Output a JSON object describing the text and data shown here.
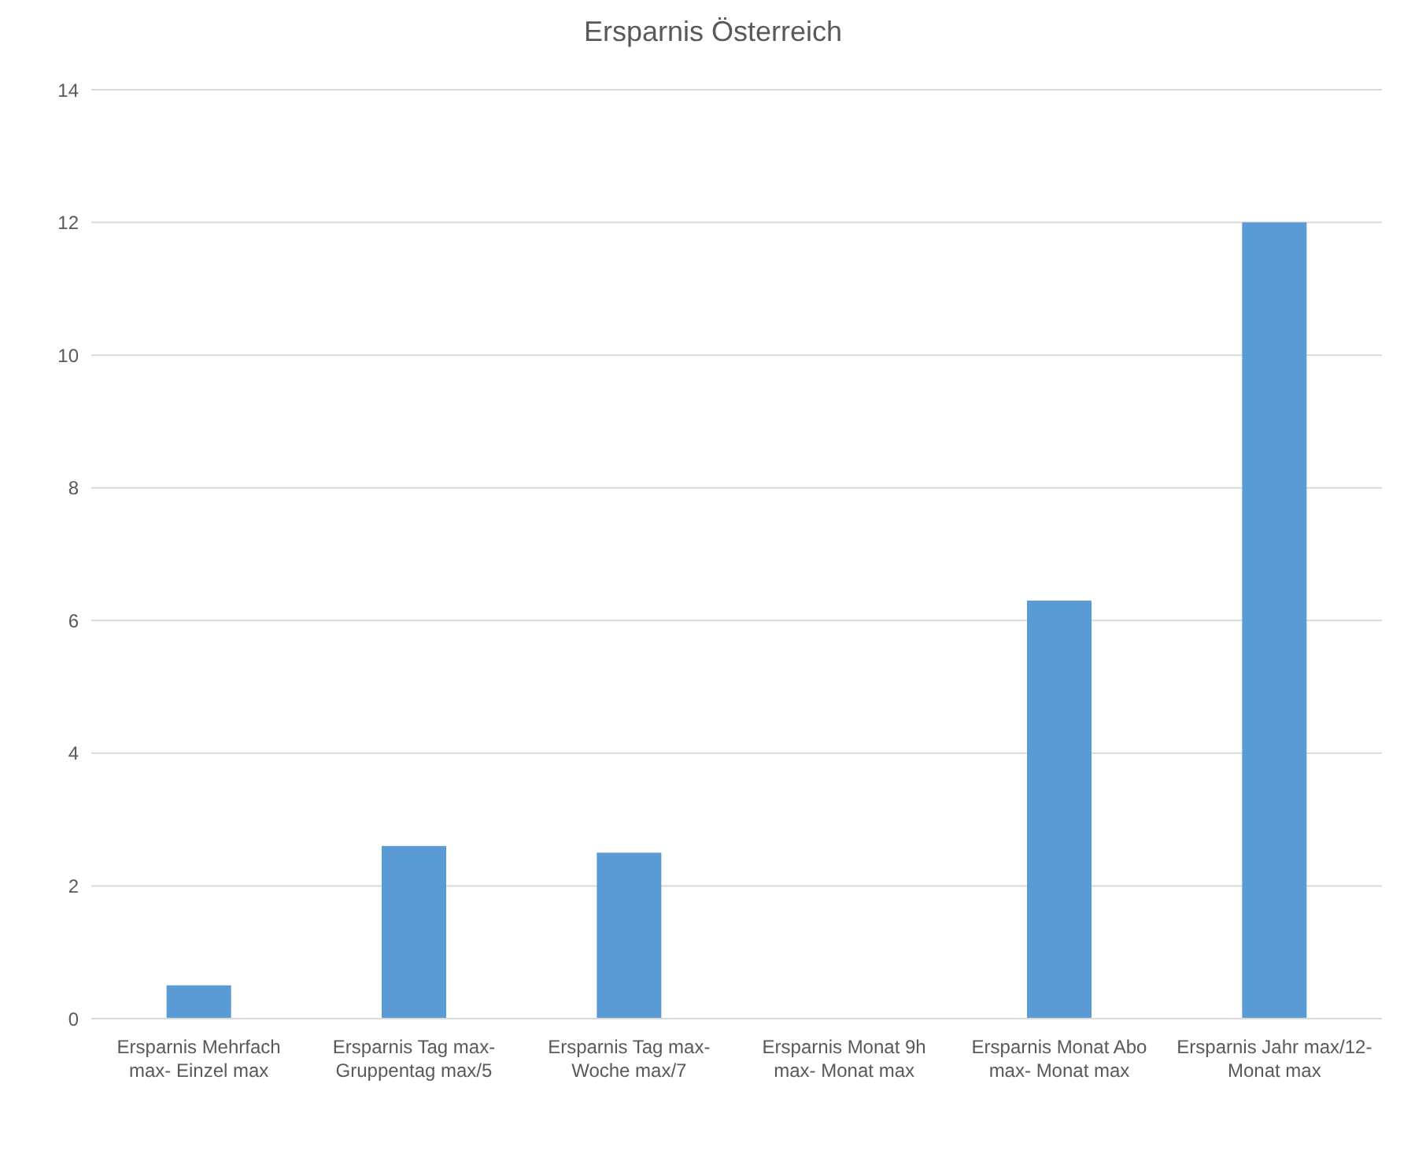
{
  "chart_data": {
    "type": "bar",
    "title": "Ersparnis Österreich",
    "categories": [
      "Ersparnis Mehrfach max- Einzel max",
      "Ersparnis Tag max- Gruppentag max/5",
      "Ersparnis Tag max- Woche max/7",
      "Ersparnis Monat 9h max- Monat max",
      "Ersparnis Monat Abo max- Monat max",
      "Ersparnis Jahr max/12- Monat max"
    ],
    "values": [
      0.5,
      2.6,
      2.5,
      0,
      6.3,
      12
    ],
    "color": "#5b9bd5",
    "ylim": [
      0,
      14
    ],
    "yticks": [
      0,
      2,
      4,
      6,
      8,
      10,
      12,
      14
    ],
    "grid": "y",
    "legend": false
  }
}
